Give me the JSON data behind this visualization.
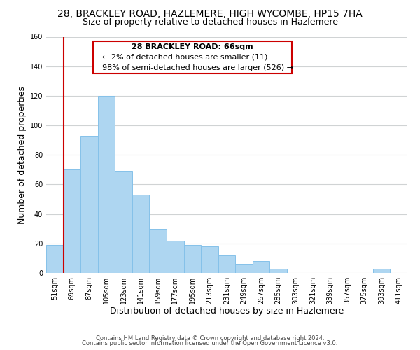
{
  "title": "28, BRACKLEY ROAD, HAZLEMERE, HIGH WYCOMBE, HP15 7HA",
  "subtitle": "Size of property relative to detached houses in Hazlemere",
  "xlabel": "Distribution of detached houses by size in Hazlemere",
  "ylabel": "Number of detached properties",
  "bar_color": "#aed6f1",
  "bar_edge_color": "#85c1e9",
  "bin_labels": [
    "51sqm",
    "69sqm",
    "87sqm",
    "105sqm",
    "123sqm",
    "141sqm",
    "159sqm",
    "177sqm",
    "195sqm",
    "213sqm",
    "231sqm",
    "249sqm",
    "267sqm",
    "285sqm",
    "303sqm",
    "321sqm",
    "339sqm",
    "357sqm",
    "375sqm",
    "393sqm",
    "411sqm"
  ],
  "bar_heights": [
    19,
    70,
    93,
    120,
    69,
    53,
    30,
    22,
    19,
    18,
    12,
    6,
    8,
    3,
    0,
    0,
    0,
    0,
    0,
    3,
    0
  ],
  "ylim": [
    0,
    160
  ],
  "yticks": [
    0,
    20,
    40,
    60,
    80,
    100,
    120,
    140,
    160
  ],
  "annotation_title": "28 BRACKLEY ROAD: 66sqm",
  "annotation_line1": "← 2% of detached houses are smaller (11)",
  "annotation_line2": "98% of semi-detached houses are larger (526) →",
  "footer_line1": "Contains HM Land Registry data © Crown copyright and database right 2024.",
  "footer_line2": "Contains public sector information licensed under the Open Government Licence v3.0.",
  "background_color": "#ffffff",
  "grid_color": "#d0d3d4",
  "red_color": "#cc0000",
  "title_fontsize": 10,
  "subtitle_fontsize": 9,
  "axis_label_fontsize": 9,
  "tick_fontsize": 7,
  "annotation_fontsize": 8,
  "footer_fontsize": 6
}
